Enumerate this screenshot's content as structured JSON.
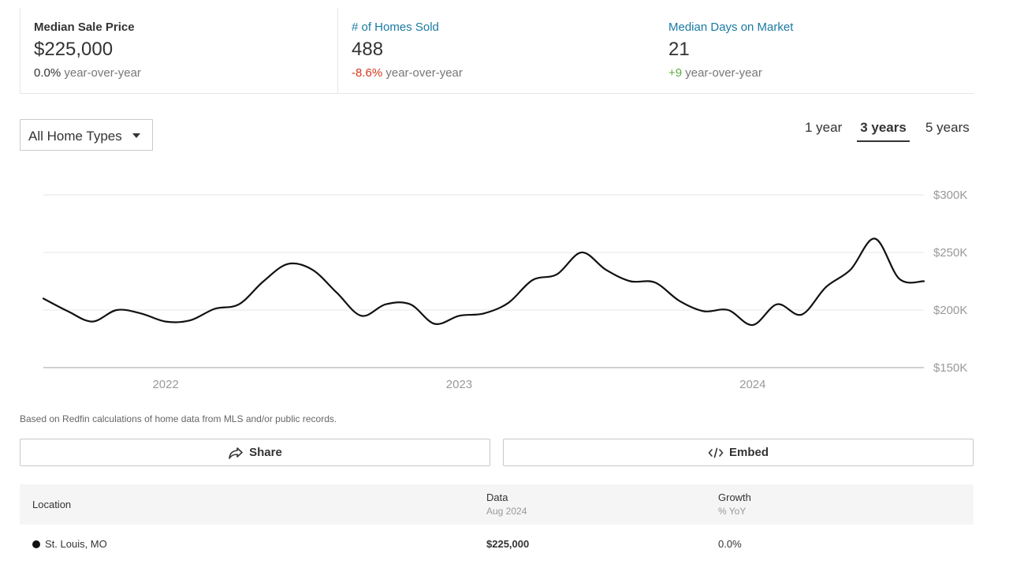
{
  "stats": [
    {
      "title": "Median Sale Price",
      "value": "$225,000",
      "change": "0.0%",
      "change_suffix": "year-over-year"
    },
    {
      "title": "# of Homes Sold",
      "value": "488",
      "change": "-8.6%",
      "change_suffix": "year-over-year"
    },
    {
      "title": "Median Days on Market",
      "value": "21",
      "change": "+9",
      "change_suffix": "year-over-year"
    }
  ],
  "controls": {
    "home_type": "All Home Types",
    "ranges": [
      "1 year",
      "3 years",
      "5 years"
    ],
    "active_range": "3 years"
  },
  "chart_data": {
    "type": "line",
    "title": "",
    "xlabel": "",
    "ylabel": "",
    "x_tick_labels": [
      "2022",
      "2023",
      "2024"
    ],
    "y_tick_labels": [
      "$300K",
      "$250K",
      "$200K",
      "$150K"
    ],
    "y_ticks": [
      300000,
      250000,
      200000,
      150000
    ],
    "ylim": [
      150000,
      300000
    ],
    "grid": true,
    "x_domain": [
      "2021-08",
      "2024-08"
    ],
    "series": [
      {
        "color": "#111111",
        "points": [
          {
            "x": "2021-08",
            "y": 210000
          },
          {
            "x": "2021-09",
            "y": 199000
          },
          {
            "x": "2021-10",
            "y": 190000
          },
          {
            "x": "2021-11",
            "y": 200000
          },
          {
            "x": "2021-12",
            "y": 197000
          },
          {
            "x": "2022-01",
            "y": 190000
          },
          {
            "x": "2022-02",
            "y": 191000
          },
          {
            "x": "2022-03",
            "y": 201000
          },
          {
            "x": "2022-04",
            "y": 205000
          },
          {
            "x": "2022-05",
            "y": 225000
          },
          {
            "x": "2022-06",
            "y": 240000
          },
          {
            "x": "2022-07",
            "y": 235000
          },
          {
            "x": "2022-08",
            "y": 215000
          },
          {
            "x": "2022-09",
            "y": 195000
          },
          {
            "x": "2022-10",
            "y": 205000
          },
          {
            "x": "2022-11",
            "y": 205000
          },
          {
            "x": "2022-12",
            "y": 188000
          },
          {
            "x": "2023-01",
            "y": 195000
          },
          {
            "x": "2023-02",
            "y": 197000
          },
          {
            "x": "2023-03",
            "y": 206000
          },
          {
            "x": "2023-04",
            "y": 226000
          },
          {
            "x": "2023-05",
            "y": 231000
          },
          {
            "x": "2023-06",
            "y": 250000
          },
          {
            "x": "2023-07",
            "y": 235000
          },
          {
            "x": "2023-08",
            "y": 225000
          },
          {
            "x": "2023-09",
            "y": 224000
          },
          {
            "x": "2023-10",
            "y": 208000
          },
          {
            "x": "2023-11",
            "y": 199000
          },
          {
            "x": "2023-12",
            "y": 200000
          },
          {
            "x": "2024-01",
            "y": 187000
          },
          {
            "x": "2024-02",
            "y": 205000
          },
          {
            "x": "2024-03",
            "y": 196000
          },
          {
            "x": "2024-04",
            "y": 220000
          },
          {
            "x": "2024-05",
            "y": 235000
          },
          {
            "x": "2024-06",
            "y": 262000
          },
          {
            "x": "2024-07",
            "y": 227000
          },
          {
            "x": "2024-08",
            "y": 225000
          }
        ]
      }
    ]
  },
  "disclaimer": "Based on Redfin calculations of home data from MLS and/or public records.",
  "actions": {
    "share_label": "Share",
    "embed_label": "Embed"
  },
  "table": {
    "headers": {
      "location": "Location",
      "data": "Data",
      "data_sub": "Aug 2024",
      "growth": "Growth",
      "growth_sub": "% YoY"
    },
    "rows": [
      {
        "location": "St. Louis, MO",
        "data": "$225,000",
        "growth": "0.0%"
      }
    ]
  },
  "colors": {
    "link": "#1a7aa3",
    "negative": "#d2391e",
    "positive": "#5fae3f",
    "series": "#111111"
  }
}
